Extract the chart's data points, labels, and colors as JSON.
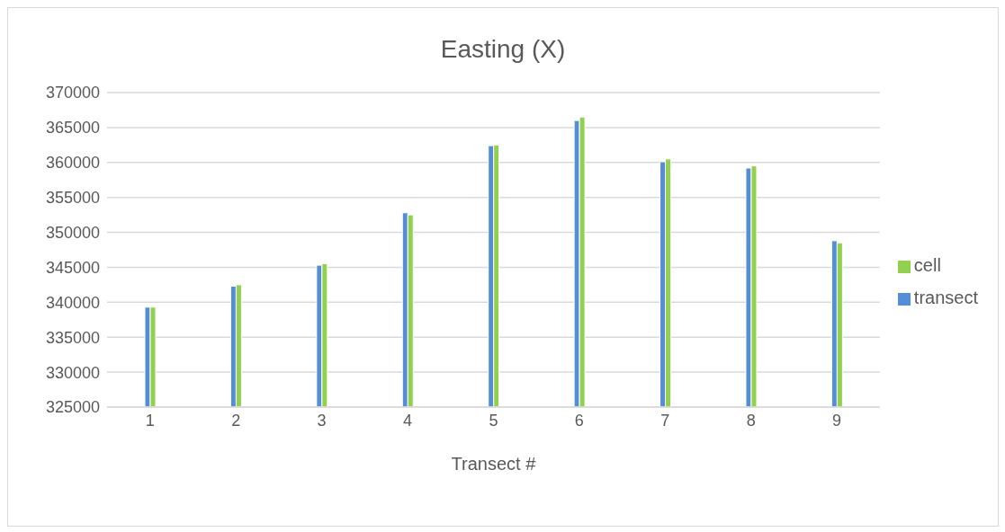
{
  "chart_data": {
    "type": "bar",
    "title": "Easting (X)",
    "xlabel": "Transect #",
    "categories": [
      "1",
      "2",
      "3",
      "4",
      "5",
      "6",
      "7",
      "8",
      "9"
    ],
    "series": [
      {
        "name": "transect",
        "color": "#558ed5",
        "values": [
          339300,
          342300,
          345300,
          352800,
          362400,
          366000,
          360100,
          359200,
          348800
        ]
      },
      {
        "name": "cell",
        "color": "#92d050",
        "values": [
          339300,
          342500,
          345500,
          352500,
          362500,
          366500,
          360500,
          359500,
          348500
        ]
      }
    ],
    "ylim": [
      325000,
      370000
    ],
    "yticks": [
      325000,
      330000,
      335000,
      340000,
      345000,
      350000,
      355000,
      360000,
      365000,
      370000
    ],
    "grid": "y",
    "legend": "right"
  }
}
